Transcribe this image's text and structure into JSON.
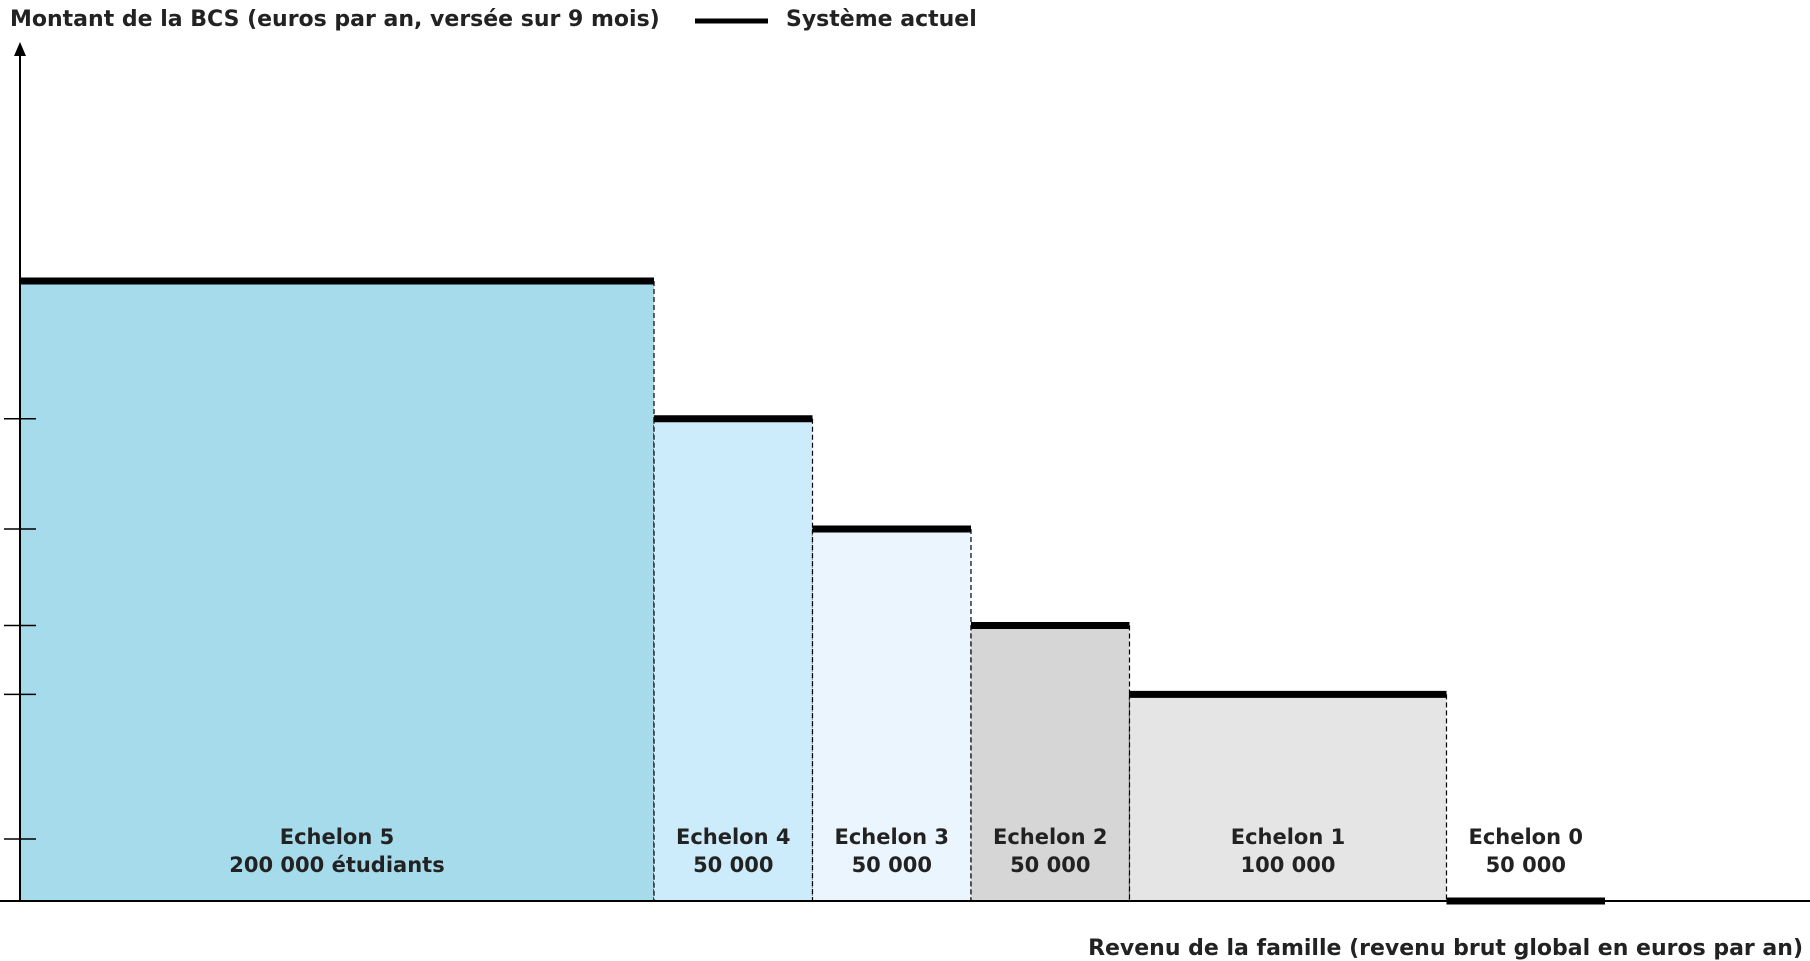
{
  "chart_data": {
    "type": "bar",
    "ylabel": "Montant de la BCS (euros par an, versée sur 9 mois)",
    "xlabel": "Revenu de la famille (revenu brut global en euros par an)",
    "legend": {
      "label": "Système actuel",
      "color": "#000000",
      "placement": "top"
    },
    "categories": [
      "Echelon 5",
      "Echelon 4",
      "Echelon 3",
      "Echelon 2",
      "Echelon 1",
      "Echelon 0"
    ],
    "students": [
      "200 000 étudiants",
      "50 000",
      "50 000",
      "50 000",
      "100 000",
      "50 000"
    ],
    "student_counts": [
      200000,
      50000,
      50000,
      50000,
      100000,
      50000
    ],
    "values": [
      4.5,
      3.5,
      2.7,
      2.0,
      1.5,
      0
    ],
    "values_note": "",
    "colors": [
      "#a6dbec",
      "#cdecfb",
      "#ebf5fe",
      "#d6d6d6",
      "#e5e5e5",
      "#ffffff"
    ],
    "y_ticks": [
      0.45,
      1.5,
      2.0,
      2.7,
      3.5
    ],
    "grid": false
  }
}
